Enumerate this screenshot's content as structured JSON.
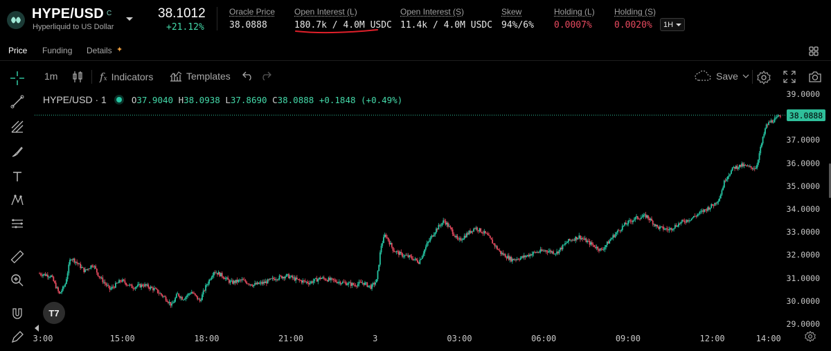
{
  "header": {
    "pair": "HYPE/USD",
    "pair_badge": "C",
    "pair_subtitle": "Hyperliquid to US Dollar",
    "price": "38.1012",
    "change": "+21.12%",
    "stats": [
      {
        "label": "Oracle Price",
        "value": "38.0888",
        "color": "neutral"
      },
      {
        "label": "Open Interest (L)",
        "value": "180.7k / 4.0M USDC",
        "color": "neutral"
      },
      {
        "label": "Open Interest (S)",
        "value": "11.4k / 4.0M USDC",
        "color": "neutral"
      },
      {
        "label": "Skew",
        "value": "94%/6%",
        "color": "neutral"
      },
      {
        "label": "Holding (L)",
        "value": "0.0007%",
        "color": "red"
      },
      {
        "label": "Holding (S)",
        "value": "0.0020%",
        "color": "red"
      }
    ],
    "timeframe": "1H"
  },
  "tabs": [
    {
      "label": "Price",
      "active": true
    },
    {
      "label": "Funding",
      "active": false
    },
    {
      "label": "Details",
      "active": false
    }
  ],
  "toolbar": {
    "interval": "1m",
    "indicators": "Indicators",
    "templates": "Templates",
    "save": "Save"
  },
  "left_tools": [
    "crosshair-icon",
    "trend-line-icon",
    "fib-icon",
    "brush-icon",
    "text-icon",
    "pattern-icon",
    "forecast-icon",
    "ruler-icon",
    "zoom-in-icon",
    "magnet-icon",
    "lock-pencil-icon"
  ],
  "chart": {
    "legend_symbol": "HYPE/USD · 1",
    "legend_ohlc": {
      "o": "37.9040",
      "h": "38.0938",
      "l": "37.8690",
      "c": "38.0888",
      "change": "+0.1848",
      "change_pct": "(+0.49%)"
    },
    "last_price_tag": "38.0888",
    "logo_text": "T7",
    "colors": {
      "up": "#26c6a4",
      "down": "#e84a5f",
      "background": "#000000",
      "accent": "#2fbf9a"
    }
  },
  "chart_data": {
    "type": "candlestick",
    "series_name": "HYPE/USD",
    "y_ticks": [
      "39.0000",
      "38.0000",
      "37.0000",
      "36.0000",
      "35.0000",
      "34.0000",
      "33.0000",
      "32.0000",
      "31.0000",
      "30.0000",
      "29.0000"
    ],
    "ylim": [
      28.7,
      39.3
    ],
    "x_ticks": [
      {
        "label": "3:00",
        "hour": 12
      },
      {
        "label": "15:00",
        "hour": 15
      },
      {
        "label": "18:00",
        "hour": 18
      },
      {
        "label": "21:00",
        "hour": 21
      },
      {
        "label": "3",
        "hour": 24
      },
      {
        "label": "03:00",
        "hour": 27
      },
      {
        "label": "06:00",
        "hour": 30
      },
      {
        "label": "09:00",
        "hour": 33
      },
      {
        "label": "12:00",
        "hour": 36
      },
      {
        "label": "14:00",
        "hour": 38
      }
    ],
    "xlim": [
      12.0,
      38.5
    ],
    "price_path": [
      [
        12.05,
        31.2
      ],
      [
        12.5,
        31.1
      ],
      [
        12.8,
        30.3
      ],
      [
        13.0,
        30.7
      ],
      [
        13.2,
        31.9
      ],
      [
        13.4,
        31.7
      ],
      [
        13.7,
        31.3
      ],
      [
        14.0,
        31.6
      ],
      [
        14.2,
        31.1
      ],
      [
        14.6,
        30.5
      ],
      [
        15.0,
        30.9
      ],
      [
        15.4,
        30.6
      ],
      [
        15.8,
        30.7
      ],
      [
        16.2,
        30.5
      ],
      [
        16.6,
        30.1
      ],
      [
        16.8,
        29.8
      ],
      [
        17.0,
        30.3
      ],
      [
        17.2,
        30.1
      ],
      [
        17.5,
        30.4
      ],
      [
        17.8,
        30.0
      ],
      [
        18.0,
        30.6
      ],
      [
        18.3,
        31.3
      ],
      [
        18.6,
        31.1
      ],
      [
        18.9,
        30.8
      ],
      [
        19.3,
        30.9
      ],
      [
        19.7,
        30.7
      ],
      [
        20.1,
        30.8
      ],
      [
        20.5,
        31.0
      ],
      [
        20.9,
        31.1
      ],
      [
        21.3,
        30.9
      ],
      [
        21.7,
        30.8
      ],
      [
        22.1,
        31.0
      ],
      [
        22.5,
        30.9
      ],
      [
        22.9,
        30.8
      ],
      [
        23.3,
        30.7
      ],
      [
        23.6,
        30.8
      ],
      [
        23.9,
        30.6
      ],
      [
        24.1,
        30.9
      ],
      [
        24.25,
        32.4
      ],
      [
        24.4,
        32.9
      ],
      [
        24.7,
        32.2
      ],
      [
        25.0,
        32.0
      ],
      [
        25.3,
        31.9
      ],
      [
        25.6,
        31.7
      ],
      [
        25.9,
        32.5
      ],
      [
        26.2,
        33.1
      ],
      [
        26.5,
        33.5
      ],
      [
        26.8,
        33.0
      ],
      [
        27.0,
        32.6
      ],
      [
        27.2,
        32.8
      ],
      [
        27.6,
        33.2
      ],
      [
        28.0,
        32.9
      ],
      [
        28.5,
        32.1
      ],
      [
        28.9,
        31.8
      ],
      [
        29.3,
        31.9
      ],
      [
        29.7,
        32.1
      ],
      [
        30.1,
        32.2
      ],
      [
        30.5,
        32.1
      ],
      [
        30.9,
        32.6
      ],
      [
        31.3,
        32.8
      ],
      [
        31.7,
        32.5
      ],
      [
        32.1,
        32.2
      ],
      [
        32.5,
        32.8
      ],
      [
        32.9,
        33.3
      ],
      [
        33.3,
        33.6
      ],
      [
        33.7,
        33.7
      ],
      [
        34.1,
        33.2
      ],
      [
        34.5,
        33.1
      ],
      [
        34.9,
        33.4
      ],
      [
        35.3,
        33.6
      ],
      [
        35.7,
        33.9
      ],
      [
        36.1,
        34.2
      ],
      [
        36.3,
        34.5
      ],
      [
        36.5,
        35.3
      ],
      [
        36.8,
        35.8
      ],
      [
        37.1,
        35.9
      ],
      [
        37.4,
        35.8
      ],
      [
        37.6,
        35.8
      ],
      [
        37.75,
        36.6
      ],
      [
        37.95,
        37.6
      ],
      [
        38.1,
        37.8
      ],
      [
        38.3,
        37.9
      ],
      [
        38.45,
        38.08
      ]
    ],
    "last_price": 38.0888
  }
}
